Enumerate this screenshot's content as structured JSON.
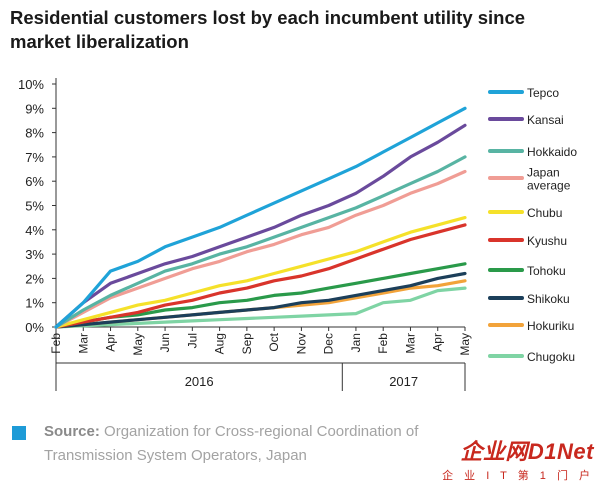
{
  "title": "Residential customers lost by each incumbent utility since market liberalization",
  "source": {
    "label": "Source:",
    "text": "Organization for Cross-regional Coordination of Transmission System Operators, Japan"
  },
  "watermark": {
    "main": "企业网D1Net",
    "sub": "企 业 I T 第 1 门 户"
  },
  "chart_data": {
    "type": "line",
    "categories": [
      "Feb",
      "Mar",
      "Apr",
      "May",
      "Jun",
      "Jul",
      "Aug",
      "Sep",
      "Oct",
      "Nov",
      "Dec",
      "Jan",
      "Feb",
      "Mar",
      "Apr",
      "May"
    ],
    "year_labels": [
      {
        "text": "2016",
        "from": 0,
        "to": 10
      },
      {
        "text": "2017",
        "from": 11,
        "to": 15
      }
    ],
    "ylim": [
      0,
      10
    ],
    "yticks": [
      "0%",
      "1%",
      "2%",
      "3%",
      "4%",
      "5%",
      "6%",
      "7%",
      "8%",
      "9%",
      "10%"
    ],
    "grid": false,
    "legend_position": "right",
    "series": [
      {
        "name": "Tepco",
        "color": "#1fa3d8",
        "values": [
          0,
          1.0,
          2.3,
          2.7,
          3.3,
          3.7,
          4.1,
          4.6,
          5.1,
          5.6,
          6.1,
          6.6,
          7.2,
          7.8,
          8.4,
          9.0
        ]
      },
      {
        "name": "Kansai",
        "color": "#6a4a9c",
        "values": [
          0,
          1.0,
          1.8,
          2.2,
          2.6,
          2.9,
          3.3,
          3.7,
          4.1,
          4.6,
          5.0,
          5.5,
          6.2,
          7.0,
          7.6,
          8.3
        ]
      },
      {
        "name": "Hokkaido",
        "color": "#58b4a3",
        "values": [
          0,
          0.7,
          1.3,
          1.8,
          2.3,
          2.6,
          3.0,
          3.3,
          3.7,
          4.1,
          4.5,
          4.9,
          5.4,
          5.9,
          6.4,
          7.0
        ]
      },
      {
        "name": "Japan average",
        "color": "#f09d95",
        "values": [
          0,
          0.6,
          1.2,
          1.6,
          2.0,
          2.4,
          2.7,
          3.1,
          3.4,
          3.8,
          4.1,
          4.6,
          5.0,
          5.5,
          5.9,
          6.4
        ]
      },
      {
        "name": "Chubu",
        "color": "#f5e12a",
        "values": [
          0,
          0.3,
          0.6,
          0.9,
          1.1,
          1.4,
          1.7,
          1.9,
          2.2,
          2.5,
          2.8,
          3.1,
          3.5,
          3.9,
          4.2,
          4.5
        ]
      },
      {
        "name": "Kyushu",
        "color": "#d9342b",
        "values": [
          0,
          0.2,
          0.4,
          0.6,
          0.9,
          1.1,
          1.4,
          1.6,
          1.9,
          2.1,
          2.4,
          2.8,
          3.2,
          3.6,
          3.9,
          4.2
        ]
      },
      {
        "name": "Tohoku",
        "color": "#2a9a4a",
        "values": [
          0,
          0.2,
          0.4,
          0.5,
          0.7,
          0.8,
          1.0,
          1.1,
          1.3,
          1.4,
          1.6,
          1.8,
          2.0,
          2.2,
          2.4,
          2.6
        ]
      },
      {
        "name": "Shikoku",
        "color": "#1c3f5a",
        "values": [
          0,
          0.1,
          0.2,
          0.3,
          0.4,
          0.5,
          0.6,
          0.7,
          0.8,
          1.0,
          1.1,
          1.3,
          1.5,
          1.7,
          2.0,
          2.2
        ]
      },
      {
        "name": "Hokuriku",
        "color": "#f2a33a",
        "values": [
          0,
          0.1,
          0.2,
          0.3,
          0.4,
          0.5,
          0.6,
          0.7,
          0.8,
          0.9,
          1.0,
          1.2,
          1.4,
          1.6,
          1.7,
          1.9
        ]
      },
      {
        "name": "Chugoku",
        "color": "#7fd4a4",
        "values": [
          0,
          0.05,
          0.1,
          0.15,
          0.2,
          0.25,
          0.3,
          0.35,
          0.4,
          0.45,
          0.5,
          0.55,
          1.0,
          1.1,
          1.5,
          1.6
        ]
      }
    ]
  }
}
